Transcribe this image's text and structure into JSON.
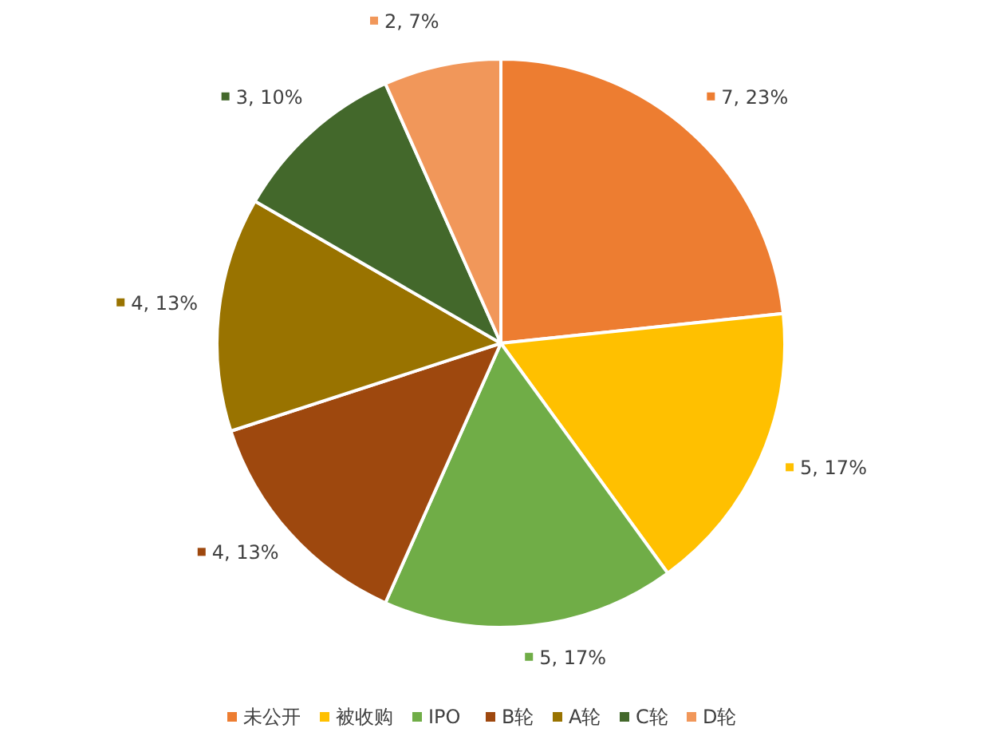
{
  "chart_data": {
    "type": "pie",
    "categories": [
      "未公开",
      "被收购",
      "IPO",
      "B轮",
      "A轮",
      "C轮",
      "D轮"
    ],
    "values": [
      7,
      5,
      5,
      4,
      4,
      3,
      2
    ],
    "colors": [
      "#ed7d31",
      "#ffc000",
      "#70ad47",
      "#9e480e",
      "#997300",
      "#43682b",
      "#f1975a"
    ],
    "value_labels": [
      "7, 23%",
      "5, 17%",
      "5, 17%",
      "4, 13%",
      "4, 13%",
      "3, 10%",
      "2, 7%"
    ],
    "legend": "bottom"
  }
}
